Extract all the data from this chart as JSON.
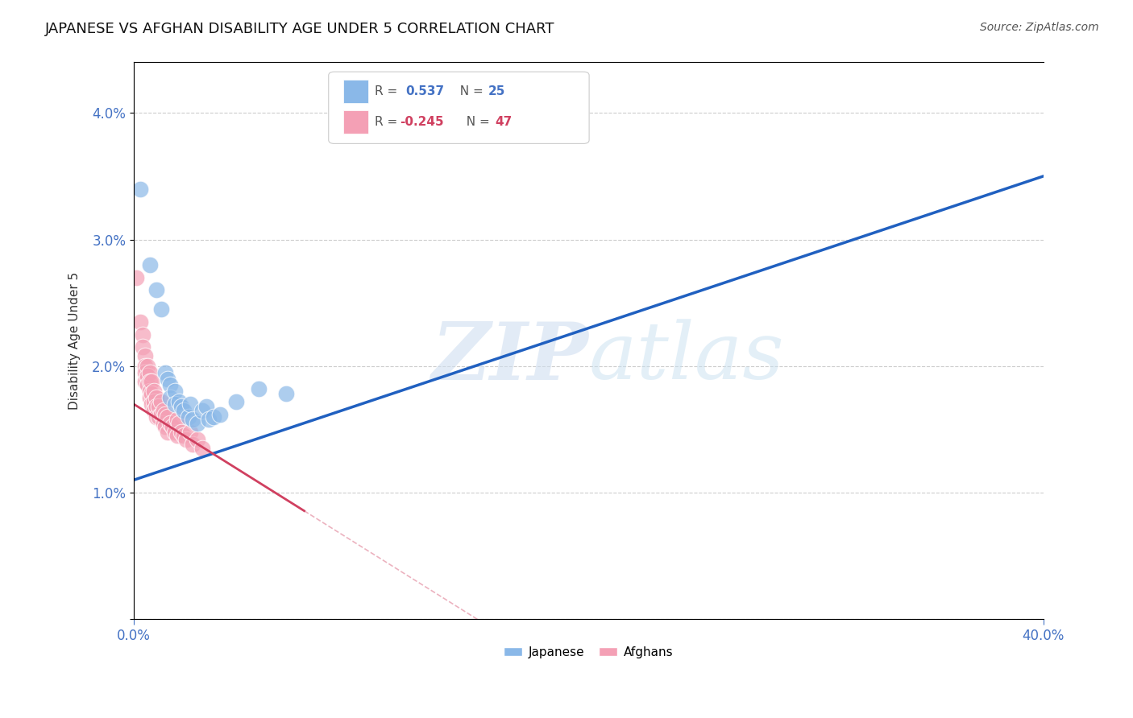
{
  "title": "JAPANESE VS AFGHAN DISABILITY AGE UNDER 5 CORRELATION CHART",
  "source": "Source: ZipAtlas.com",
  "ylabel": "Disability Age Under 5",
  "ytick_values": [
    0.0,
    0.01,
    0.02,
    0.03,
    0.04
  ],
  "ytick_labels": [
    "",
    "1.0%",
    "2.0%",
    "3.0%",
    "4.0%"
  ],
  "xtick_values": [
    0.0,
    0.4
  ],
  "xtick_labels": [
    "0.0%",
    "40.0%"
  ],
  "xlim": [
    0.0,
    0.4
  ],
  "ylim": [
    0.0,
    0.044
  ],
  "japanese_R": 0.537,
  "japanese_N": 25,
  "afghan_R": -0.245,
  "afghan_N": 47,
  "japanese_color": "#8ab8e8",
  "afghan_color": "#f4a0b5",
  "japanese_line_color": "#2060c0",
  "afghan_line_color": "#d04060",
  "watermark_zip": "ZIP",
  "watermark_atlas": "atlas",
  "legend_R_color": "#4472c4",
  "legend_N_color": "#4472c4",
  "tick_label_color": "#4472c4",
  "grid_color": "#cccccc",
  "background_color": "#ffffff",
  "japanese_points": [
    [
      0.003,
      0.034
    ],
    [
      0.007,
      0.028
    ],
    [
      0.01,
      0.026
    ],
    [
      0.012,
      0.0245
    ],
    [
      0.014,
      0.0195
    ],
    [
      0.015,
      0.019
    ],
    [
      0.016,
      0.0185
    ],
    [
      0.016,
      0.0175
    ],
    [
      0.018,
      0.018
    ],
    [
      0.018,
      0.017
    ],
    [
      0.02,
      0.0172
    ],
    [
      0.021,
      0.0168
    ],
    [
      0.022,
      0.0165
    ],
    [
      0.024,
      0.016
    ],
    [
      0.025,
      0.017
    ],
    [
      0.026,
      0.0158
    ],
    [
      0.028,
      0.0155
    ],
    [
      0.03,
      0.0165
    ],
    [
      0.032,
      0.0168
    ],
    [
      0.033,
      0.0158
    ],
    [
      0.035,
      0.016
    ],
    [
      0.038,
      0.0162
    ],
    [
      0.045,
      0.0172
    ],
    [
      0.055,
      0.0182
    ],
    [
      0.067,
      0.0178
    ]
  ],
  "afghan_points": [
    [
      0.001,
      0.027
    ],
    [
      0.003,
      0.0235
    ],
    [
      0.004,
      0.0225
    ],
    [
      0.004,
      0.0215
    ],
    [
      0.005,
      0.0208
    ],
    [
      0.005,
      0.02
    ],
    [
      0.005,
      0.0195
    ],
    [
      0.005,
      0.0188
    ],
    [
      0.006,
      0.02
    ],
    [
      0.006,
      0.0192
    ],
    [
      0.006,
      0.0185
    ],
    [
      0.007,
      0.0195
    ],
    [
      0.007,
      0.0188
    ],
    [
      0.007,
      0.018
    ],
    [
      0.007,
      0.0175
    ],
    [
      0.008,
      0.0188
    ],
    [
      0.008,
      0.0178
    ],
    [
      0.008,
      0.017
    ],
    [
      0.009,
      0.018
    ],
    [
      0.009,
      0.0172
    ],
    [
      0.009,
      0.0165
    ],
    [
      0.01,
      0.0175
    ],
    [
      0.01,
      0.0168
    ],
    [
      0.01,
      0.016
    ],
    [
      0.011,
      0.0168
    ],
    [
      0.011,
      0.016
    ],
    [
      0.012,
      0.0172
    ],
    [
      0.012,
      0.0162
    ],
    [
      0.013,
      0.0165
    ],
    [
      0.013,
      0.0155
    ],
    [
      0.014,
      0.0162
    ],
    [
      0.014,
      0.0152
    ],
    [
      0.015,
      0.016
    ],
    [
      0.015,
      0.0148
    ],
    [
      0.016,
      0.0155
    ],
    [
      0.017,
      0.0152
    ],
    [
      0.018,
      0.0148
    ],
    [
      0.019,
      0.0158
    ],
    [
      0.019,
      0.0145
    ],
    [
      0.02,
      0.0155
    ],
    [
      0.021,
      0.0148
    ],
    [
      0.022,
      0.0145
    ],
    [
      0.023,
      0.0142
    ],
    [
      0.025,
      0.0148
    ],
    [
      0.026,
      0.0138
    ],
    [
      0.028,
      0.0142
    ],
    [
      0.03,
      0.0135
    ]
  ],
  "title_fontsize": 13,
  "axis_fontsize": 11,
  "tick_fontsize": 12
}
